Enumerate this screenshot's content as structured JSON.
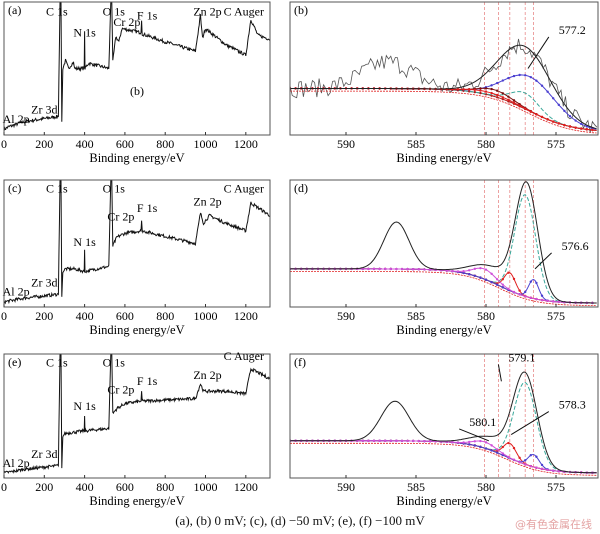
{
  "caption": "(a), (b) 0 mV; (c), (d) −50 mV; (e), (f) −100 mV",
  "watermark": "@有色金属在线",
  "colors": {
    "envelope": "#222222",
    "raw": "#555555",
    "background": "#b01818",
    "blue": "#4a3fd0",
    "teal": "#3aa79a",
    "red": "#e02020",
    "magenta": "#d050d8",
    "darkred": "#7a1010",
    "dash": "#e88a8a"
  },
  "chart_data": [
    {
      "id": "a",
      "type": "line",
      "panel_label": "(a)",
      "xlabel": "Binding energy/eV",
      "xlim": [
        0,
        1320
      ],
      "xticks": [
        0,
        200,
        400,
        600,
        800,
        1000,
        1200
      ],
      "ylim": [
        0,
        1
      ],
      "series": [
        {
          "name": "survey",
          "points": [
            [
              0,
              0.04
            ],
            [
              20,
              0.06
            ],
            [
              100,
              0.1
            ],
            [
              270,
              0.14
            ],
            [
              278,
              1.0
            ],
            [
              283,
              1.0
            ],
            [
              287,
              0.1
            ],
            [
              292,
              0.5
            ],
            [
              305,
              0.56
            ],
            [
              320,
              0.5
            ],
            [
              345,
              0.55
            ],
            [
              350,
              0.5
            ],
            [
              398,
              0.5
            ],
            [
              400,
              0.78
            ],
            [
              402,
              0.5
            ],
            [
              420,
              0.54
            ],
            [
              520,
              0.5
            ],
            [
              530,
              1.0
            ],
            [
              535,
              1.0
            ],
            [
              540,
              0.55
            ],
            [
              555,
              0.74
            ],
            [
              570,
              0.7
            ],
            [
              585,
              0.8
            ],
            [
              680,
              0.77
            ],
            [
              683,
              0.86
            ],
            [
              686,
              0.76
            ],
            [
              800,
              0.7
            ],
            [
              950,
              0.63
            ],
            [
              975,
              0.9
            ],
            [
              985,
              0.73
            ],
            [
              1000,
              0.8
            ],
            [
              1100,
              0.68
            ],
            [
              1200,
              0.6
            ],
            [
              1225,
              0.87
            ],
            [
              1260,
              0.75
            ],
            [
              1320,
              0.72
            ]
          ]
        }
      ],
      "annotations": [
        {
          "text": "C 1s",
          "x": 262,
          "y": 0.9
        },
        {
          "text": "O 1s",
          "x": 545,
          "y": 0.9
        },
        {
          "text": "N 1s",
          "x": 400,
          "y": 0.74
        },
        {
          "text": "Cr 2p",
          "x": 610,
          "y": 0.82
        },
        {
          "text": "F 1s",
          "x": 710,
          "y": 0.87
        },
        {
          "text": "Zn 2p",
          "x": 1010,
          "y": 0.9
        },
        {
          "text": "C Auger",
          "x": 1190,
          "y": 0.9
        },
        {
          "text": "(b)",
          "x": 660,
          "y": 0.3
        },
        {
          "text": "Zr 3d",
          "x": 200,
          "y": 0.16
        },
        {
          "text": "Al 2p",
          "x": 60,
          "y": 0.09
        }
      ]
    },
    {
      "id": "b",
      "type": "line",
      "panel_label": "(b)",
      "xlabel": "Binding energy/eV",
      "xlim": [
        594,
        572
      ],
      "xticks": [
        590,
        585,
        580,
        575
      ],
      "ylim": [
        0,
        1
      ],
      "reference_lines": [
        580.1,
        579.1,
        578.3,
        577.2,
        576.6
      ],
      "background": {
        "high": 0.35,
        "low": 0.02,
        "center": 577,
        "width": 1.6
      },
      "envelope": [
        {
          "center": 577.2,
          "height": 0.47,
          "width": 1.9
        }
      ],
      "raw_bumps": [
        {
          "center": 587,
          "height": 0.2,
          "width": 1.8
        }
      ],
      "components": [
        {
          "name": "blue",
          "center": 576.8,
          "height": 0.26,
          "width": 1.8
        },
        {
          "name": "teal",
          "center": 577.2,
          "height": 0.12,
          "width": 1.0
        },
        {
          "name": "darkred",
          "center": 579.4,
          "height": 0.05,
          "width": 1.2
        },
        {
          "name": "red",
          "center": 580,
          "height": 0.02,
          "width": 1.5
        }
      ],
      "annotations": [
        {
          "text": "577.2",
          "x": 574.8,
          "y": 0.76,
          "tx": 577,
          "ty": 0.5
        }
      ]
    },
    {
      "id": "c",
      "type": "line",
      "panel_label": "(c)",
      "xlabel": "Binding energy/eV",
      "xlim": [
        0,
        1320
      ],
      "xticks": [
        0,
        200,
        400,
        600,
        800,
        1000,
        1200
      ],
      "ylim": [
        0,
        1
      ],
      "series": [
        {
          "name": "survey",
          "points": [
            [
              0,
              0.04
            ],
            [
              100,
              0.07
            ],
            [
              270,
              0.1
            ],
            [
              278,
              1.0
            ],
            [
              283,
              1.0
            ],
            [
              287,
              0.08
            ],
            [
              292,
              0.28
            ],
            [
              305,
              0.3
            ],
            [
              350,
              0.3
            ],
            [
              398,
              0.28
            ],
            [
              400,
              0.45
            ],
            [
              402,
              0.28
            ],
            [
              520,
              0.32
            ],
            [
              530,
              1.0
            ],
            [
              535,
              1.0
            ],
            [
              540,
              0.48
            ],
            [
              560,
              0.55
            ],
            [
              600,
              0.58
            ],
            [
              680,
              0.6
            ],
            [
              683,
              0.68
            ],
            [
              686,
              0.6
            ],
            [
              950,
              0.5
            ],
            [
              975,
              0.74
            ],
            [
              990,
              0.66
            ],
            [
              1020,
              0.72
            ],
            [
              1100,
              0.66
            ],
            [
              1200,
              0.6
            ],
            [
              1225,
              0.82
            ],
            [
              1320,
              0.72
            ]
          ]
        }
      ],
      "annotations": [
        {
          "text": "C 1s",
          "x": 262,
          "y": 0.9
        },
        {
          "text": "O 1s",
          "x": 545,
          "y": 0.9
        },
        {
          "text": "N 1s",
          "x": 400,
          "y": 0.48
        },
        {
          "text": "Cr 2p",
          "x": 580,
          "y": 0.68
        },
        {
          "text": "F 1s",
          "x": 710,
          "y": 0.75
        },
        {
          "text": "Zn 2p",
          "x": 1010,
          "y": 0.8
        },
        {
          "text": "C Auger",
          "x": 1190,
          "y": 0.9
        },
        {
          "text": "Zr 3d",
          "x": 200,
          "y": 0.16
        },
        {
          "text": "Al 2p",
          "x": 60,
          "y": 0.09
        }
      ]
    },
    {
      "id": "d",
      "type": "line",
      "panel_label": "(d)",
      "xlabel": "Binding energy/eV",
      "xlim": [
        594,
        572
      ],
      "xticks": [
        590,
        585,
        580,
        575
      ],
      "ylim": [
        0,
        1
      ],
      "reference_lines": [
        580.1,
        579.1,
        578.3,
        577.2,
        576.6
      ],
      "background": {
        "high": 0.3,
        "low": 0.03,
        "center": 579,
        "width": 1.3
      },
      "envelope": [
        {
          "center": 586.4,
          "height": 0.37,
          "width": 0.9
        },
        {
          "center": 577.1,
          "height": 0.88,
          "width": 0.8
        },
        {
          "center": 579.6,
          "height": 0.12,
          "width": 1.4
        }
      ],
      "components": [
        {
          "name": "teal",
          "center": 577.2,
          "height": 0.8,
          "width": 0.75
        },
        {
          "name": "red",
          "center": 578.3,
          "height": 0.14,
          "width": 0.4
        },
        {
          "name": "blue",
          "center": 576.6,
          "height": 0.15,
          "width": 0.35
        },
        {
          "name": "magenta",
          "center": 580.1,
          "height": 0.08,
          "width": 0.8
        }
      ],
      "annotations": [
        {
          "text": "576.6",
          "x": 574.6,
          "y": 0.45,
          "tx": 576.5,
          "ty": 0.3
        }
      ]
    },
    {
      "id": "e",
      "type": "line",
      "panel_label": "(e)",
      "xlabel": "Binding energy/eV",
      "xlim": [
        0,
        1320
      ],
      "xticks": [
        0,
        200,
        400,
        600,
        800,
        1000,
        1200
      ],
      "ylim": [
        0,
        1
      ],
      "series": [
        {
          "name": "survey",
          "points": [
            [
              0,
              0.04
            ],
            [
              100,
              0.07
            ],
            [
              270,
              0.1
            ],
            [
              278,
              1.0
            ],
            [
              283,
              1.0
            ],
            [
              287,
              0.08
            ],
            [
              292,
              0.34
            ],
            [
              305,
              0.36
            ],
            [
              398,
              0.38
            ],
            [
              400,
              0.5
            ],
            [
              402,
              0.38
            ],
            [
              520,
              0.4
            ],
            [
              530,
              1.0
            ],
            [
              535,
              1.0
            ],
            [
              540,
              0.52
            ],
            [
              560,
              0.56
            ],
            [
              600,
              0.6
            ],
            [
              680,
              0.62
            ],
            [
              683,
              0.7
            ],
            [
              686,
              0.62
            ],
            [
              950,
              0.64
            ],
            [
              975,
              0.76
            ],
            [
              990,
              0.7
            ],
            [
              1100,
              0.7
            ],
            [
              1200,
              0.68
            ],
            [
              1225,
              0.88
            ],
            [
              1320,
              0.8
            ]
          ]
        }
      ],
      "annotations": [
        {
          "text": "C 1s",
          "x": 262,
          "y": 0.9
        },
        {
          "text": "O 1s",
          "x": 545,
          "y": 0.9
        },
        {
          "text": "N 1s",
          "x": 400,
          "y": 0.55
        },
        {
          "text": "Cr 2p",
          "x": 580,
          "y": 0.68
        },
        {
          "text": "F 1s",
          "x": 710,
          "y": 0.75
        },
        {
          "text": "Zn 2p",
          "x": 1010,
          "y": 0.8
        },
        {
          "text": "C Auger",
          "x": 1190,
          "y": 0.95
        },
        {
          "text": "Zr 3d",
          "x": 200,
          "y": 0.16
        },
        {
          "text": "Al 2p",
          "x": 60,
          "y": 0.09
        }
      ]
    },
    {
      "id": "f",
      "type": "line",
      "panel_label": "(f)",
      "xlabel": "Binding energy/eV",
      "xlim": [
        594,
        572
      ],
      "xticks": [
        590,
        585,
        580,
        575
      ],
      "ylim": [
        0,
        1
      ],
      "reference_lines": [
        580.1,
        579.1,
        578.3,
        577.2,
        576.6
      ],
      "background": {
        "high": 0.3,
        "low": 0.04,
        "center": 578.5,
        "width": 1.3
      },
      "envelope": [
        {
          "center": 586.5,
          "height": 0.32,
          "width": 1.0
        },
        {
          "center": 577.2,
          "height": 0.72,
          "width": 0.85
        },
        {
          "center": 579.6,
          "height": 0.1,
          "width": 1.4
        }
      ],
      "components": [
        {
          "name": "teal",
          "center": 577.2,
          "height": 0.66,
          "width": 0.8
        },
        {
          "name": "red",
          "center": 578.3,
          "height": 0.12,
          "width": 0.45
        },
        {
          "name": "blue",
          "center": 576.6,
          "height": 0.1,
          "width": 0.4
        },
        {
          "name": "magenta",
          "center": 580.1,
          "height": 0.05,
          "width": 0.8
        }
      ],
      "annotations": [
        {
          "text": "579.1",
          "x": 578.4,
          "y": 0.94,
          "tx": 578.9,
          "ty": 0.78
        },
        {
          "text": "580.1",
          "x": 581.2,
          "y": 0.42,
          "tx": 579.8,
          "ty": 0.3
        },
        {
          "text": "578.3",
          "x": 574.8,
          "y": 0.56,
          "tx": 578.2,
          "ty": 0.35
        }
      ]
    }
  ]
}
